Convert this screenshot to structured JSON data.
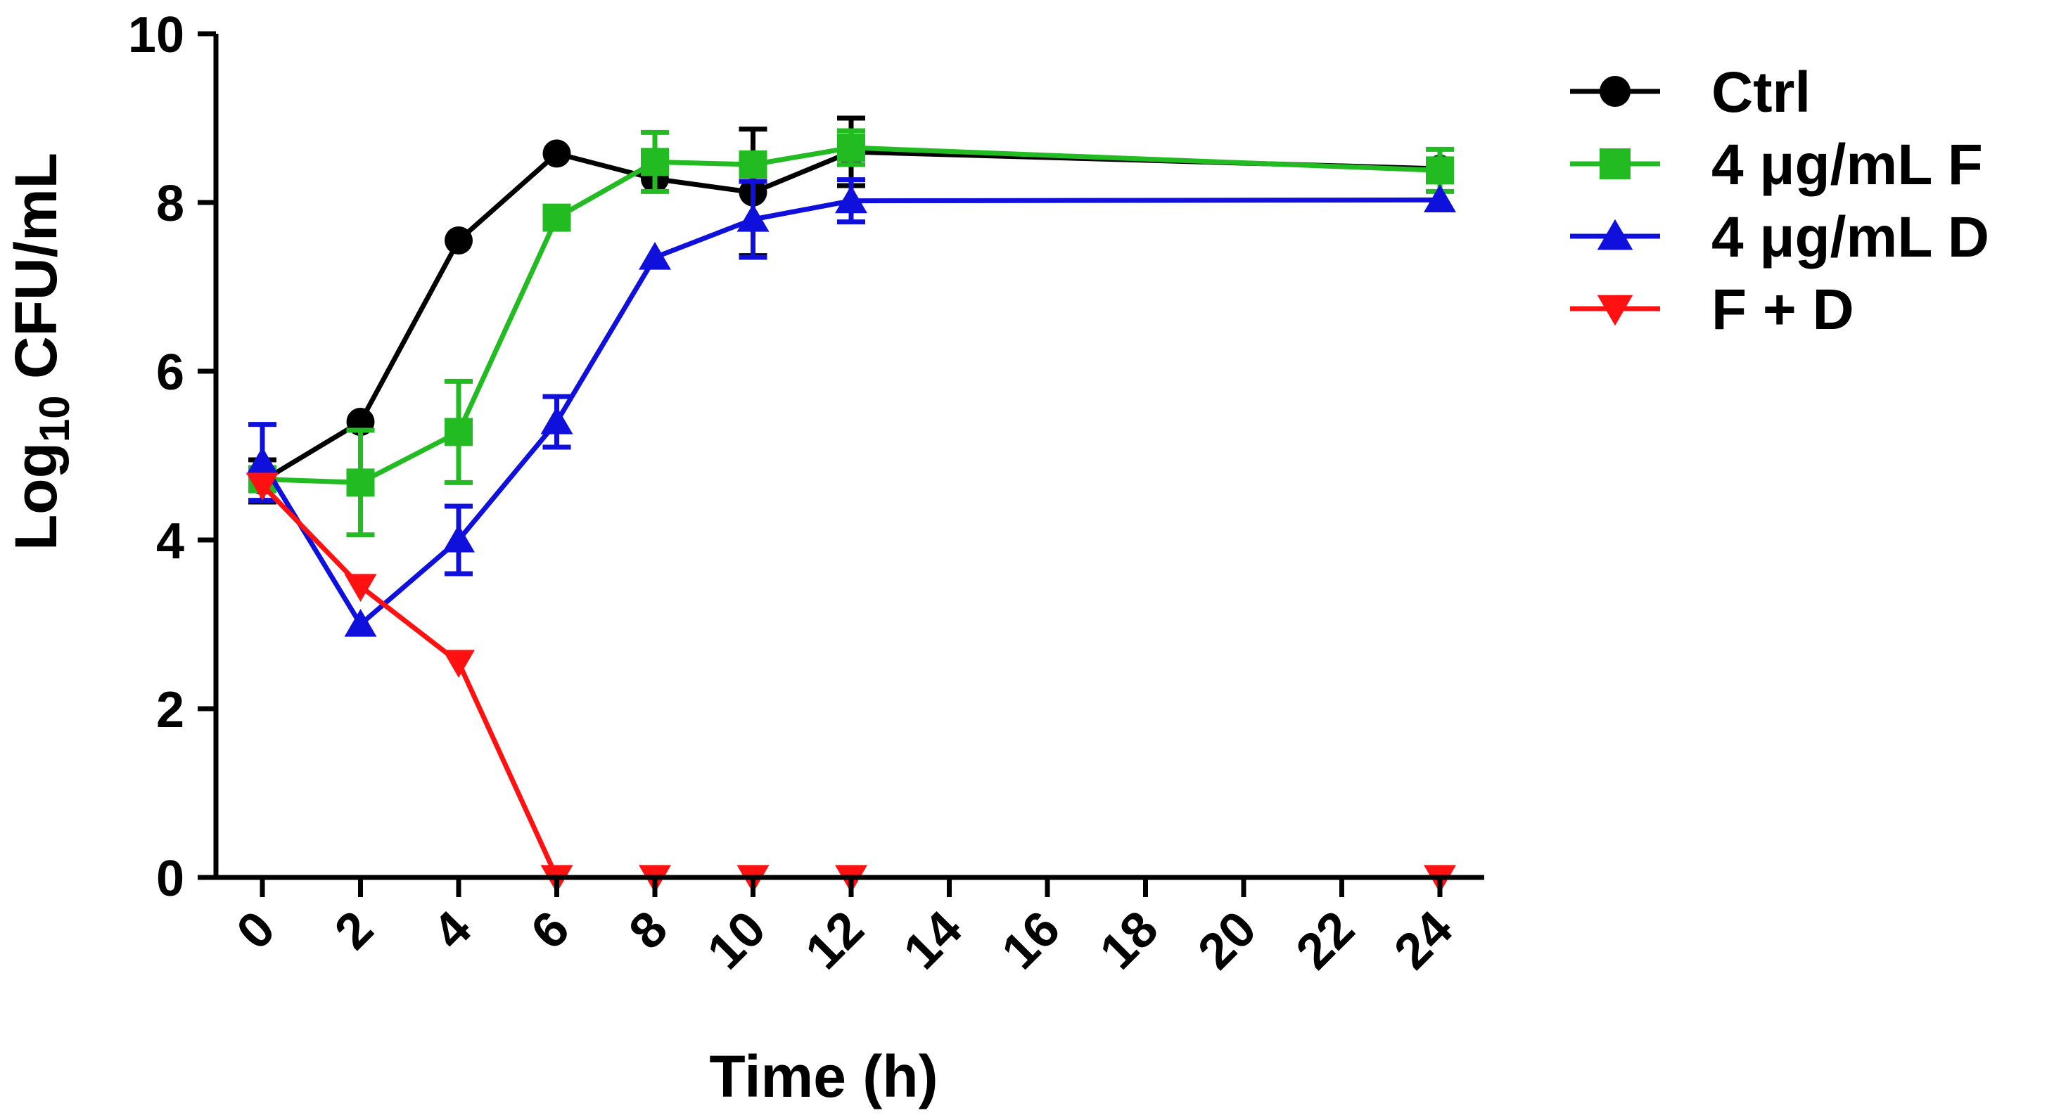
{
  "chart_data": {
    "type": "line",
    "title": "",
    "xlabel": "Time (h)",
    "ylabel_main": "Log",
    "ylabel_sub": "10",
    "ylabel_rest": " CFU/mL",
    "ylim": [
      0,
      10
    ],
    "yticks": [
      "0",
      "2",
      "4",
      "6",
      "8",
      "10"
    ],
    "xticks": [
      "0",
      "2",
      "4",
      "6",
      "8",
      "10",
      "12",
      "14",
      "16",
      "18",
      "20",
      "22",
      "24"
    ],
    "legend_position": "top-right",
    "series": [
      {
        "name": "Ctrl",
        "color": "#000000",
        "marker": "circle",
        "x": [
          0,
          2,
          4,
          6,
          8,
          10,
          12,
          24
        ],
        "values": [
          4.7,
          5.4,
          7.55,
          8.58,
          8.28,
          8.12,
          8.6,
          8.4
        ],
        "errors": [
          0.25,
          0,
          0,
          0,
          0,
          0.75,
          0.4,
          0
        ]
      },
      {
        "name": "4 μg/mL F",
        "color": "#22bb22",
        "marker": "square",
        "x": [
          0,
          2,
          4,
          6,
          8,
          10,
          12,
          24
        ],
        "values": [
          4.72,
          4.68,
          5.28,
          7.82,
          8.48,
          8.45,
          8.65,
          8.38
        ],
        "errors": [
          0,
          0.62,
          0.6,
          0,
          0.35,
          0,
          0.2,
          0.25
        ]
      },
      {
        "name": "4 μg/mL D",
        "color": "#1010dd",
        "marker": "triangle-up",
        "x": [
          0,
          2,
          4,
          6,
          8,
          10,
          12,
          24
        ],
        "values": [
          4.92,
          3.0,
          4.0,
          5.4,
          7.35,
          7.8,
          8.02,
          8.03
        ],
        "errors": [
          0.45,
          0,
          0.4,
          0.3,
          0,
          0.45,
          0.25,
          0
        ]
      },
      {
        "name": "F + D",
        "color": "#ff1111",
        "marker": "triangle-down",
        "x": [
          0,
          2,
          4,
          6,
          8,
          10,
          12,
          24
        ],
        "values": [
          4.65,
          3.45,
          2.55,
          0,
          0,
          0,
          0,
          0
        ],
        "errors": [
          0,
          0,
          0,
          0,
          0,
          0,
          0,
          0
        ]
      }
    ]
  }
}
